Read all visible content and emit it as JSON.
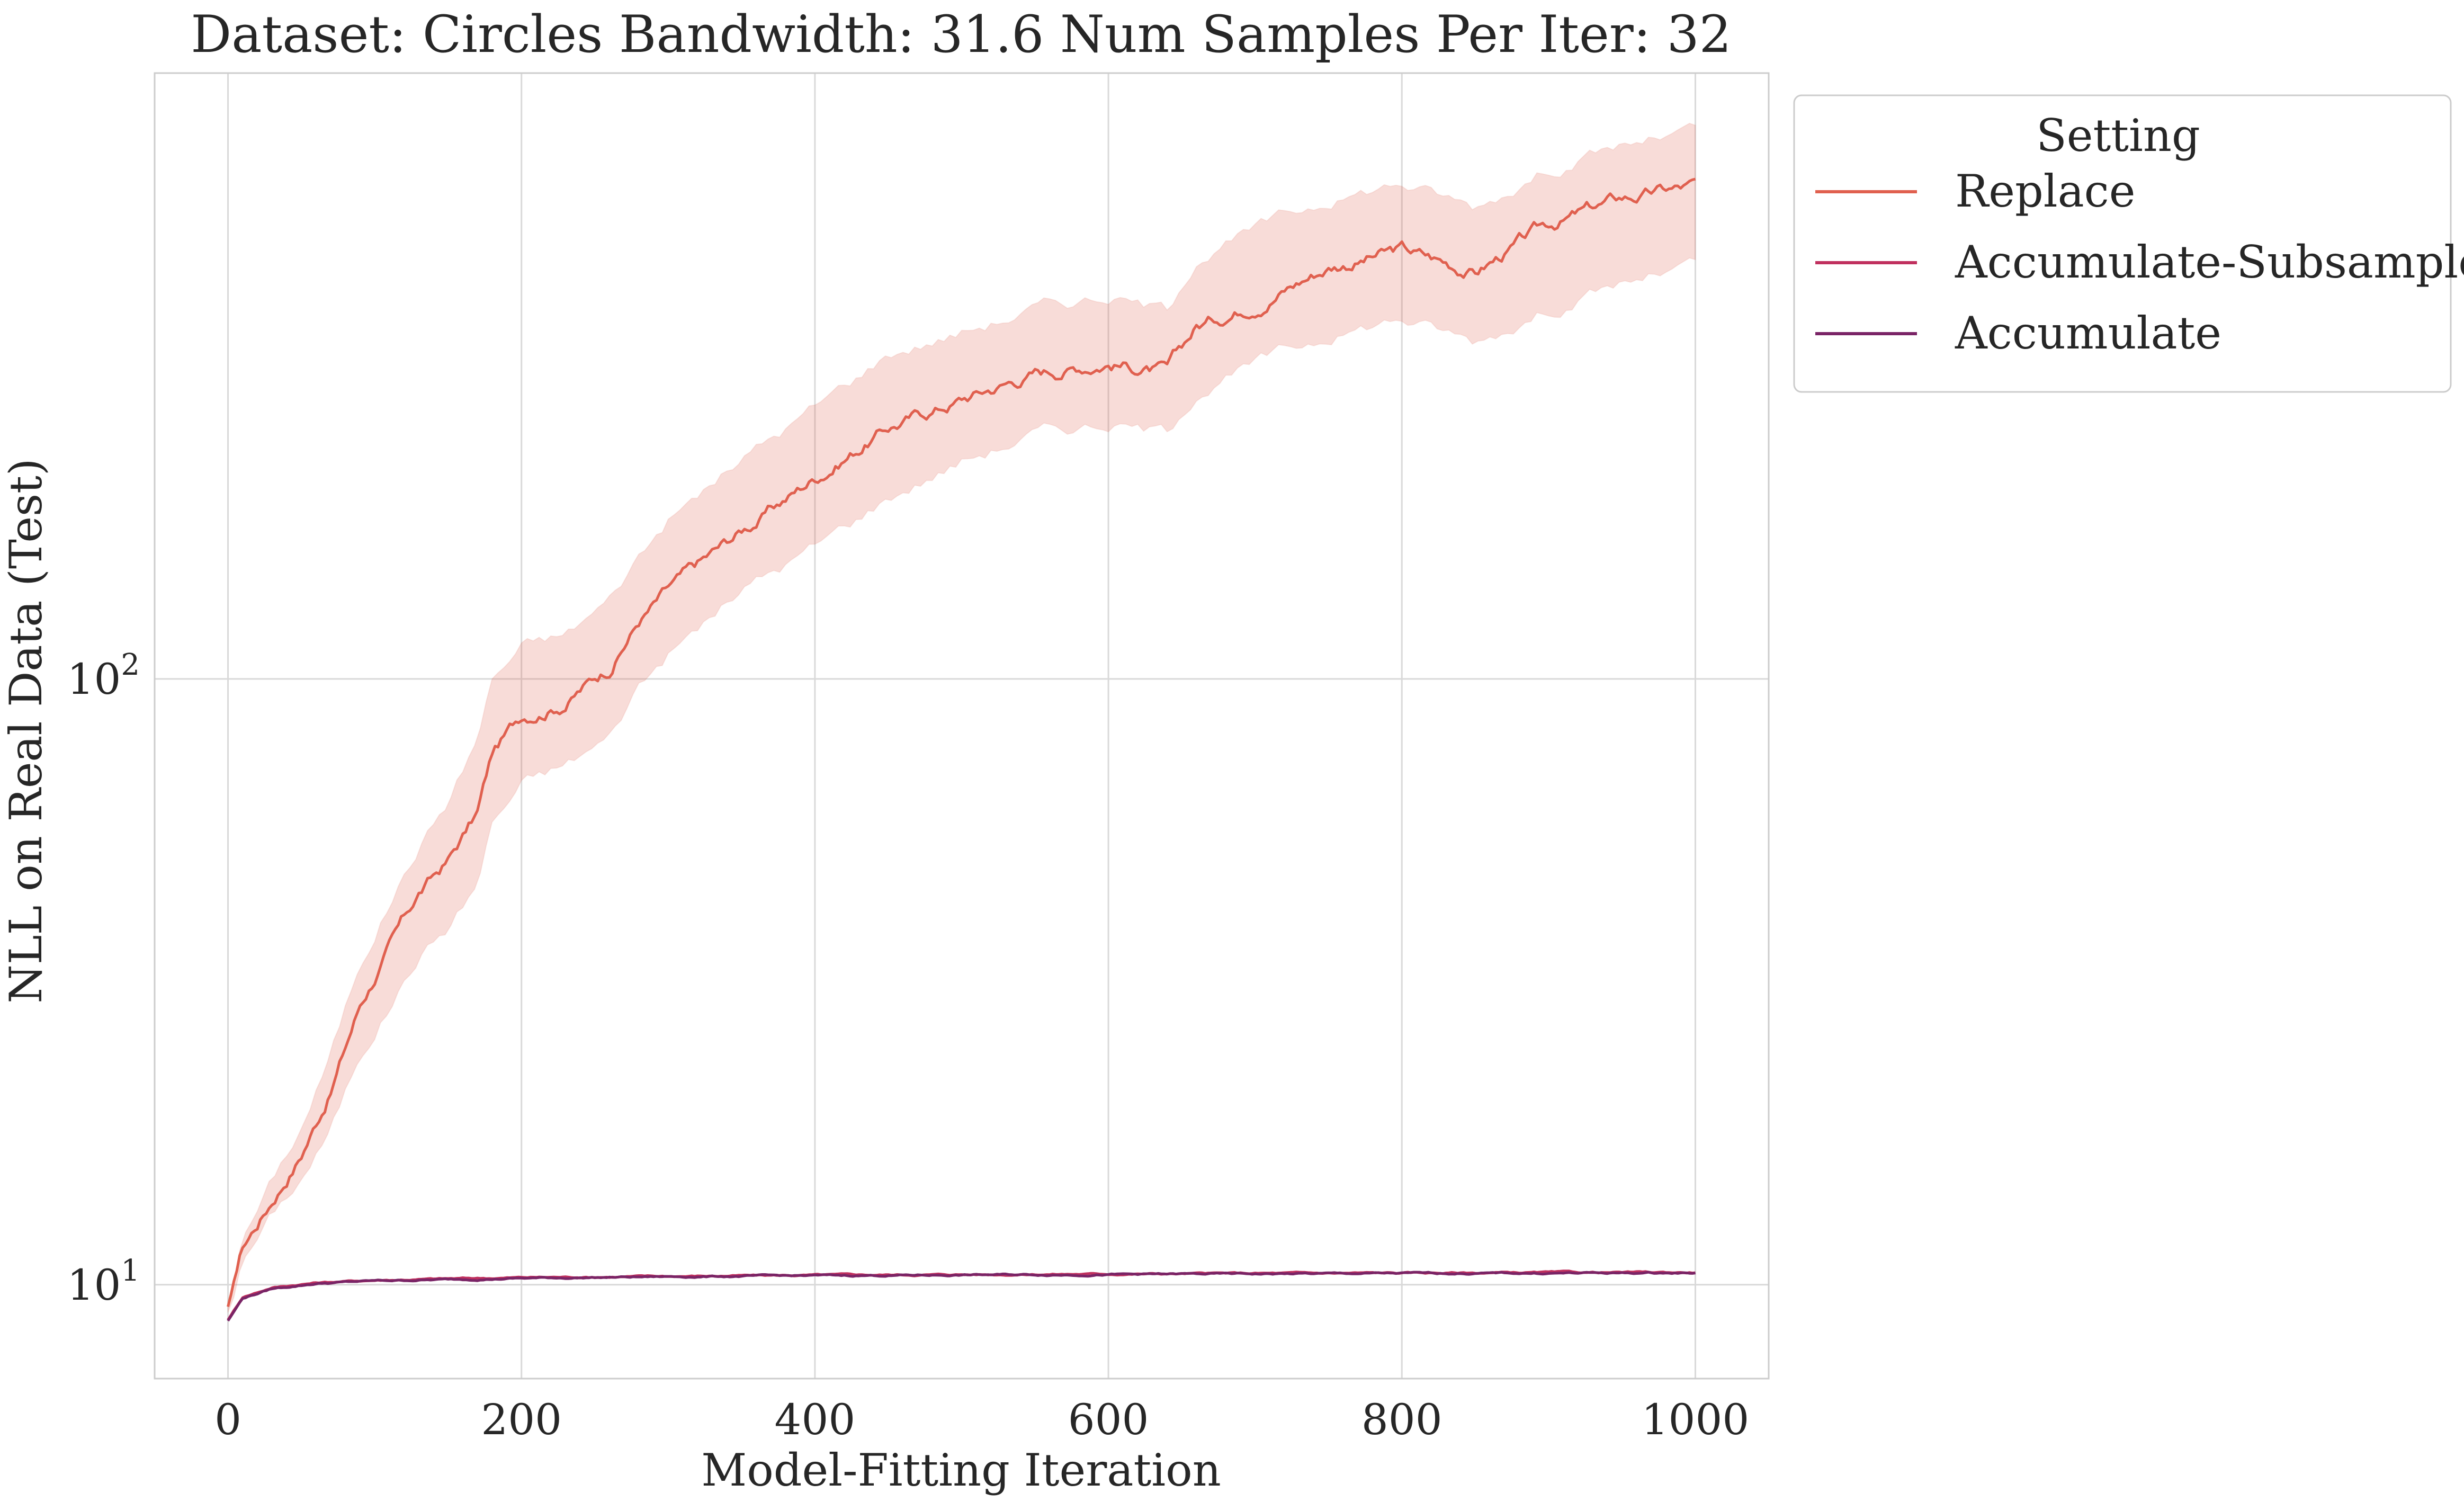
{
  "chart_data": {
    "type": "line",
    "title": "Dataset: Circles Bandwidth: 31.6 Num Samples Per Iter: 32",
    "xlabel": "Model-Fitting Iteration",
    "ylabel": "NLL on Real Data (Test)",
    "xlim": [
      -50,
      1050
    ],
    "ylim": [
      7,
      1000
    ],
    "yscale": "log",
    "grid": true,
    "x_ticks": [
      0,
      200,
      400,
      600,
      800,
      1000
    ],
    "x_tick_labels": [
      "0",
      "200",
      "400",
      "600",
      "800",
      "1000"
    ],
    "y_ticks": [
      10,
      100
    ],
    "y_tick_labels": [
      {
        "base": "10",
        "exp": "1"
      },
      {
        "base": "10",
        "exp": "2"
      }
    ],
    "legend": {
      "title": "Setting",
      "placement": "outside right"
    },
    "series": [
      {
        "name": "Replace",
        "color": "#e0604f",
        "x": [
          0,
          10,
          30,
          50,
          70,
          90,
          110,
          130,
          150,
          170,
          180,
          200,
          230,
          260,
          280,
          300,
          350,
          400,
          450,
          500,
          550,
          600,
          640,
          660,
          700,
          750,
          800,
          850,
          900,
          950,
          1000
        ],
        "values": [
          9.2,
          11.5,
          13.8,
          16.5,
          21,
          29,
          36,
          44,
          50,
          60,
          75,
          87,
          92,
          105,
          125,
          140,
          175,
          215,
          260,
          290,
          320,
          335,
          320,
          380,
          420,
          480,
          510,
          470,
          560,
          620,
          650
        ],
        "band_lower": [
          9.0,
          11.0,
          13.0,
          15.0,
          18,
          24,
          29,
          35,
          39,
          46,
          58,
          67,
          72,
          80,
          98,
          110,
          140,
          165,
          200,
          230,
          255,
          265,
          255,
          300,
          330,
          370,
          395,
          360,
          410,
          450,
          480
        ],
        "band_upper": [
          9.4,
          12.0,
          14.8,
          18.2,
          24,
          34,
          43,
          53,
          63,
          80,
          100,
          113,
          118,
          135,
          160,
          183,
          230,
          280,
          345,
          375,
          410,
          430,
          405,
          500,
          550,
          620,
          660,
          600,
          700,
          760,
          800
        ]
      },
      {
        "name": "Accumulate-Subsample",
        "color": "#c0305e",
        "x": [
          0,
          10,
          30,
          60,
          100,
          200,
          300,
          400,
          500,
          600,
          700,
          800,
          900,
          1000
        ],
        "values": [
          8.75,
          9.55,
          9.9,
          10.08,
          10.18,
          10.28,
          10.33,
          10.37,
          10.4,
          10.42,
          10.44,
          10.46,
          10.47,
          10.48
        ]
      },
      {
        "name": "Accumulate",
        "color": "#7a2466",
        "x": [
          0,
          10,
          30,
          60,
          100,
          200,
          300,
          400,
          500,
          600,
          700,
          800,
          900,
          1000
        ],
        "values": [
          8.72,
          9.5,
          9.85,
          10.05,
          10.15,
          10.25,
          10.31,
          10.35,
          10.38,
          10.4,
          10.42,
          10.44,
          10.45,
          10.46
        ]
      }
    ]
  }
}
